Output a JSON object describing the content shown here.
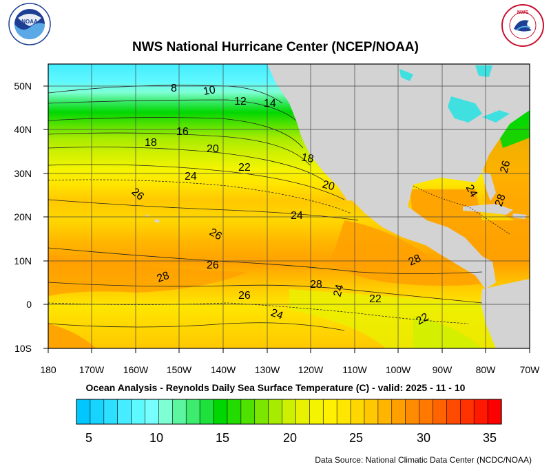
{
  "title": "NWS National Hurricane Center (NCEP/NOAA)",
  "subtitle": "Ocean Analysis - Reynolds Daily Sea Surface Temperature (C) - valid: 2025 - 11 - 10",
  "source": "Data Source: National Climatic Data Center (NCDC/NOAA)",
  "logos": {
    "left": "NOAA",
    "right": "NWS"
  },
  "axes": {
    "lat_labels": [
      "50N",
      "40N",
      "30N",
      "20N",
      "10N",
      "0",
      "10S"
    ],
    "lon_labels": [
      "180",
      "170W",
      "160W",
      "150W",
      "140W",
      "130W",
      "120W",
      "110W",
      "100W",
      "90W",
      "80W",
      "70W"
    ]
  },
  "colorbar": {
    "ticks": [
      "5",
      "10",
      "15",
      "20",
      "25",
      "30",
      "35"
    ],
    "colors": [
      "#00c8ff",
      "#17d4ff",
      "#2ee0ff",
      "#46ecff",
      "#5ef8ff",
      "#77ffff",
      "#7fffd4",
      "#5cf5a0",
      "#3deb6e",
      "#1fe13c",
      "#00d700",
      "#22dc00",
      "#4fe100",
      "#7be600",
      "#a6eb00",
      "#cdf000",
      "#e8f200",
      "#f4f400",
      "#fff100",
      "#ffe600",
      "#ffd700",
      "#ffc800",
      "#ffb400",
      "#ffa000",
      "#ff8c00",
      "#ff7800",
      "#ff6400",
      "#ff4b00",
      "#ff3200",
      "#ff1900",
      "#ff0000"
    ]
  },
  "contour_labels": [
    "8",
    "10",
    "12",
    "14",
    "16",
    "18",
    "20",
    "22",
    "24",
    "26",
    "26",
    "24",
    "26",
    "28",
    "28",
    "26",
    "24",
    "22",
    "22",
    "18",
    "20",
    "28",
    "26",
    "24",
    "28",
    "24"
  ],
  "map": {
    "land_color": "#d3d3d3",
    "lake_color": "#40e0e0"
  }
}
